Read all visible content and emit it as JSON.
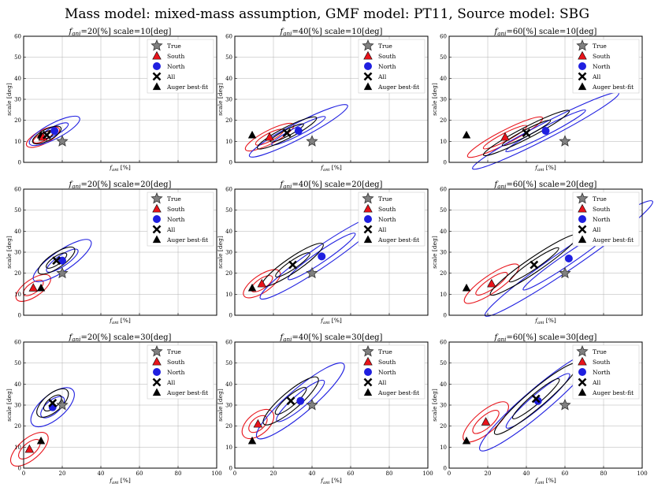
{
  "figure": {
    "title": "Mass model: mixed-mass assumption, GMF model: PT11, Source model: SBG"
  },
  "chart_data": {
    "type": "scatter",
    "axes": {
      "xlabel_main": "f",
      "xlabel_sub": "ani",
      "xlabel_unit": " [%]",
      "ylabel": "scale [deg]",
      "xlim": [
        0,
        100
      ],
      "ylim": [
        0,
        60
      ],
      "xticks": [
        0,
        20,
        40,
        60,
        80,
        100
      ],
      "yticks": [
        0,
        10,
        20,
        30,
        40,
        50,
        60
      ],
      "grid": true
    },
    "legend": {
      "location": "top-right",
      "entries": [
        {
          "key": "true",
          "label": "True"
        },
        {
          "key": "south",
          "label": "South"
        },
        {
          "key": "north",
          "label": "North"
        },
        {
          "key": "all",
          "label": "All"
        },
        {
          "key": "auger",
          "label": "Auger best-fit"
        }
      ]
    },
    "colors": {
      "true": "#808080",
      "south": "#e8141b",
      "north": "#1f1fe0",
      "all": "#000000",
      "auger": "#000000",
      "grid": "#b0b0b0"
    },
    "panels": [
      {
        "id": "f20-s10",
        "title_pre": "f",
        "title_sub": "ani",
        "title_post": "=20[%] scale=10[deg]",
        "true": [
          20,
          10
        ],
        "south": [
          10,
          12
        ],
        "north": [
          16,
          15
        ],
        "all": [
          12,
          13
        ],
        "auger": [
          9,
          13
        ],
        "show_xticks": false
      },
      {
        "id": "f40-s10",
        "title_pre": "f",
        "title_sub": "ani",
        "title_post": "=40[%] scale=10[deg]",
        "true": [
          40,
          10
        ],
        "south": [
          18,
          12
        ],
        "north": [
          33,
          15
        ],
        "all": [
          27,
          14
        ],
        "auger": [
          9,
          13
        ],
        "show_xticks": false
      },
      {
        "id": "f60-s10",
        "title_pre": "f",
        "title_sub": "ani",
        "title_post": "=60[%] scale=10[deg]",
        "true": [
          60,
          10
        ],
        "south": [
          29,
          12
        ],
        "north": [
          50,
          15
        ],
        "all": [
          40,
          14
        ],
        "auger": [
          9,
          13
        ],
        "show_xticks": false
      },
      {
        "id": "f20-s20",
        "title_pre": "f",
        "title_sub": "ani",
        "title_post": "=20[%] scale=20[deg]",
        "true": [
          20,
          20
        ],
        "south": [
          5,
          13
        ],
        "north": [
          20,
          26
        ],
        "all": [
          17,
          26
        ],
        "auger": [
          9,
          13
        ],
        "show_xticks": false
      },
      {
        "id": "f40-s20",
        "title_pre": "f",
        "title_sub": "ani",
        "title_post": "=40[%] scale=20[deg]",
        "true": [
          40,
          20
        ],
        "south": [
          14,
          15
        ],
        "north": [
          45,
          28
        ],
        "all": [
          30,
          24
        ],
        "auger": [
          9,
          13
        ],
        "show_xticks": false
      },
      {
        "id": "f60-s20",
        "title_pre": "f",
        "title_sub": "ani",
        "title_post": "=60[%] scale=20[deg]",
        "true": [
          60,
          20
        ],
        "south": [
          22,
          15
        ],
        "north": [
          62,
          27
        ],
        "all": [
          44,
          24
        ],
        "auger": [
          9,
          13
        ],
        "show_xticks": false
      },
      {
        "id": "f20-s30",
        "title_pre": "f",
        "title_sub": "ani",
        "title_post": "=20[%] scale=30[deg]",
        "true": [
          20,
          30
        ],
        "south": [
          3,
          9
        ],
        "north": [
          15,
          29
        ],
        "all": [
          15,
          31
        ],
        "auger": [
          9,
          13
        ],
        "show_xticks": true
      },
      {
        "id": "f40-s30",
        "title_pre": "f",
        "title_sub": "ani",
        "title_post": "=40[%] scale=30[deg]",
        "true": [
          40,
          30
        ],
        "south": [
          12,
          21
        ],
        "north": [
          34,
          32
        ],
        "all": [
          29,
          32
        ],
        "auger": [
          9,
          13
        ],
        "show_xticks": true
      },
      {
        "id": "f60-s30",
        "title_pre": "f",
        "title_sub": "ani",
        "title_post": "=60[%] scale=30[deg]",
        "true": [
          60,
          30
        ],
        "south": [
          19,
          22
        ],
        "north": [
          46,
          32
        ],
        "all": [
          45,
          33
        ],
        "auger": [
          9,
          13
        ],
        "show_xticks": true
      }
    ]
  }
}
